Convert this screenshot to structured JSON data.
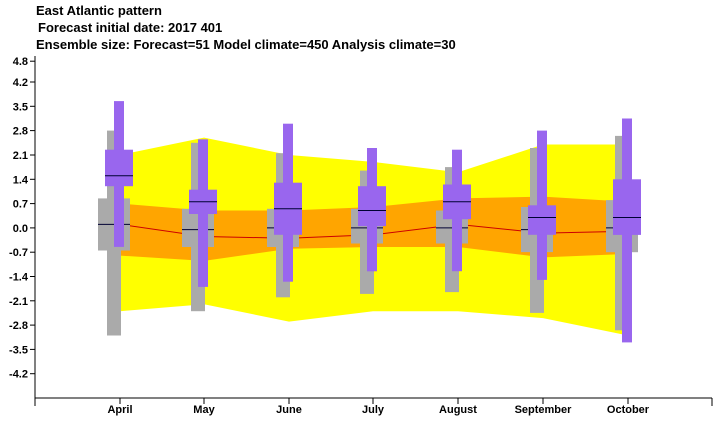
{
  "header": {
    "title": "East Atlantic pattern",
    "subtitle": "Forecast initial date: 2017 401",
    "ensemble": "Ensemble size: Forecast=51 Model climate=450 Analysis climate=30"
  },
  "colors": {
    "outer_band": "#ffff00",
    "inner_band": "#ffa500",
    "climate_box": "#aaaaaa",
    "forecast_box": "#9966ee",
    "median_line": "#cc0000",
    "median_tick": "#000033"
  },
  "chart_data": {
    "type": "box",
    "title": "East Atlantic pattern",
    "categories": [
      "April",
      "May",
      "June",
      "July",
      "August",
      "September",
      "October"
    ],
    "yticks": [
      "4.8",
      "4.2",
      "3.5",
      "2.8",
      "2.1",
      "1.4",
      "0.7",
      "0.0",
      "-0.7",
      "-1.4",
      "-2.1",
      "-2.8",
      "-3.5",
      "-4.2"
    ],
    "ytick_values": [
      4.8,
      4.2,
      3.5,
      2.8,
      2.1,
      1.4,
      0.7,
      0.0,
      -0.7,
      -1.4,
      -2.1,
      -2.8,
      -3.5,
      -4.2
    ],
    "ylim": [
      -4.9,
      4.95
    ],
    "analysis_climate": {
      "outer_upper": [
        2.1,
        2.6,
        2.1,
        1.9,
        1.6,
        2.4,
        2.4
      ],
      "inner_upper": [
        0.7,
        0.5,
        0.5,
        0.6,
        0.85,
        0.9,
        0.75
      ],
      "median": [
        0.1,
        -0.25,
        -0.3,
        -0.2,
        0.1,
        -0.15,
        -0.1
      ],
      "inner_lower": [
        -0.8,
        -0.95,
        -0.6,
        -0.55,
        -0.55,
        -0.85,
        -0.75
      ],
      "outer_lower": [
        -2.4,
        -2.2,
        -2.7,
        -2.4,
        -2.4,
        -2.6,
        -3.1
      ]
    },
    "model_climate": {
      "min": [
        -3.1,
        -2.4,
        -2.0,
        -1.9,
        -1.85,
        -2.45,
        -2.95
      ],
      "q1": [
        -0.65,
        -0.55,
        -0.55,
        -0.45,
        -0.45,
        -0.7,
        -0.7
      ],
      "median": [
        0.1,
        -0.05,
        0.0,
        0.0,
        0.0,
        -0.05,
        0.0
      ],
      "q3": [
        0.85,
        0.55,
        0.55,
        0.55,
        0.5,
        0.6,
        0.8
      ],
      "max": [
        2.8,
        2.45,
        2.15,
        1.65,
        1.75,
        2.3,
        2.65
      ]
    },
    "forecast": {
      "min": [
        -0.55,
        -1.7,
        -1.55,
        -1.25,
        -1.25,
        -1.5,
        -3.3
      ],
      "p10": [
        1.2,
        0.4,
        -0.2,
        0.05,
        0.25,
        -0.2,
        -0.2
      ],
      "median": [
        1.5,
        0.75,
        0.55,
        0.5,
        0.75,
        0.3,
        0.3
      ],
      "p90": [
        2.25,
        1.1,
        1.3,
        1.2,
        1.25,
        0.65,
        1.4
      ],
      "max": [
        3.65,
        2.55,
        3.0,
        2.3,
        2.25,
        2.8,
        3.15
      ]
    }
  }
}
